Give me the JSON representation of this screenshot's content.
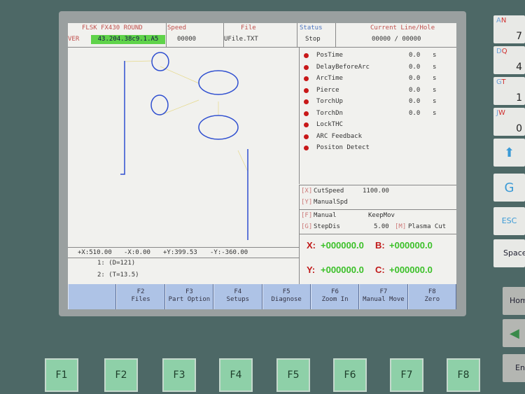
{
  "header": {
    "model": "FLSK FX430 ROUND",
    "ver_label": "VER",
    "ver_value": "43.204.38c9.1.A5",
    "speed_label": "Speed",
    "speed_value": "00000",
    "file_label": "File",
    "file_value": "UFile.TXT",
    "status_label": "Status",
    "status_value": "Stop",
    "line_label": "Current Line/Hole",
    "line_value": "00000 / 00000"
  },
  "params": [
    {
      "name": "PosTime",
      "value": "0.0",
      "unit": "s"
    },
    {
      "name": "DelayBeforeArc",
      "value": "0.0",
      "unit": "s"
    },
    {
      "name": "ArcTime",
      "value": "0.0",
      "unit": "s"
    },
    {
      "name": "Pierce",
      "value": "0.0",
      "unit": "s"
    },
    {
      "name": "TorchUp",
      "value": "0.0",
      "unit": "s"
    },
    {
      "name": "TorchDn",
      "value": "0.0",
      "unit": "s"
    },
    {
      "name": "LockTHC",
      "value": "",
      "unit": ""
    },
    {
      "name": "ARC Feedback",
      "value": "",
      "unit": ""
    },
    {
      "name": "Positon Detect",
      "value": "",
      "unit": ""
    }
  ],
  "speeds": {
    "x_key": "[X]",
    "cut_label": "CutSpeed",
    "cut_value": "1100.00",
    "y_key": "[Y]",
    "manual_label": "ManualSpd"
  },
  "mode": {
    "f_key": "[F]",
    "manual_label": "Manual",
    "manual_value": "KeepMov",
    "g_key": "[G]",
    "step_label": "StepDis",
    "step_value": "5.00",
    "m_key": "[M]",
    "m_value": "Plasma Cut"
  },
  "coords": {
    "x_label": "X:",
    "x": "+000000.0",
    "b_label": "B:",
    "b": "+000000.0",
    "y_label": "Y:",
    "y": "+000000.0",
    "c_label": "C:",
    "c": "+000000.0"
  },
  "limits": {
    "px": "+X:510.00",
    "nx": "-X:0.00",
    "py": "+Y:399.53",
    "ny": "-Y:-360.00"
  },
  "code": [
    "1: (D=121)",
    "2: (T=13.5)"
  ],
  "fkeys": [
    {
      "key": "",
      "label": ""
    },
    {
      "key": "F2",
      "label": "Files"
    },
    {
      "key": "F3",
      "label": "Part Option"
    },
    {
      "key": "F4",
      "label": "Setups"
    },
    {
      "key": "F5",
      "label": "Diagnose"
    },
    {
      "key": "F6",
      "label": "Zoom In"
    },
    {
      "key": "F7",
      "label": "Manual Move"
    },
    {
      "key": "F8",
      "label": "Zero"
    }
  ],
  "hardware_fkeys": [
    "F1",
    "F2",
    "F3",
    "F4",
    "F5",
    "F6",
    "F7",
    "F8"
  ],
  "keypad": [
    {
      "top_a": "A",
      "top_b": "N",
      "num": "7"
    },
    {
      "top_a": "D",
      "top_b": "Q",
      "num": "4"
    },
    {
      "top_a": "G",
      "top_b": "T",
      "num": "1"
    },
    {
      "top_a": "J",
      "top_b": "W",
      "num": "0"
    }
  ],
  "keypad_other": {
    "g": "G",
    "esc": "ESC",
    "space": "Space",
    "home": "Home",
    "enter": "Enter"
  },
  "colors": {
    "status_dot": "#c81818",
    "coord_value": "#3bc028",
    "coord_axis": "#c01818",
    "ver_bg": "#5fd34a",
    "fbar": "#aec3e6",
    "path": "#2f4fd0"
  }
}
